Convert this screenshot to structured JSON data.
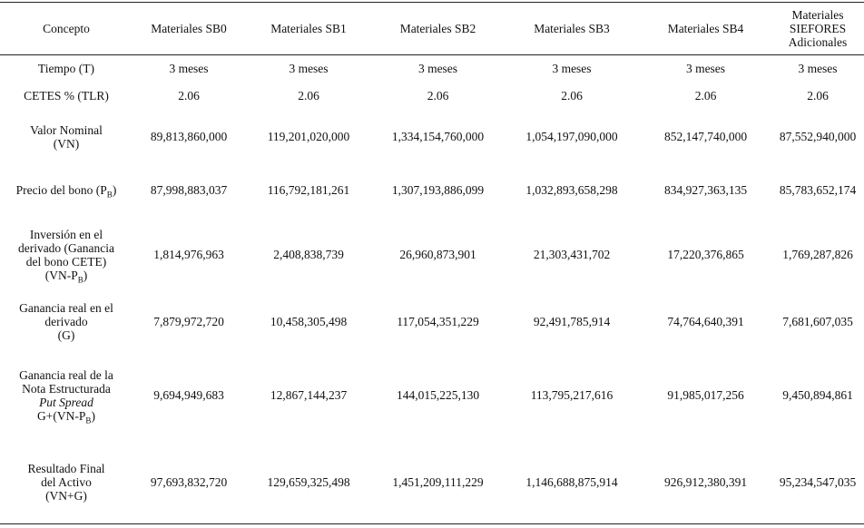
{
  "table": {
    "header": [
      "Concepto",
      "Materiales SB0",
      "Materiales SB1",
      "Materiales SB2",
      "Materiales SB3",
      "Materiales SB4",
      [
        "Materiales",
        "SIEFORES",
        "Adicionales"
      ]
    ],
    "rows": [
      {
        "label": [
          "Tiempo (T)"
        ],
        "values": [
          "3 meses",
          "3 meses",
          "3 meses",
          "3 meses",
          "3 meses",
          "3 meses"
        ]
      },
      {
        "label": [
          "CETES % (TLR)"
        ],
        "values": [
          "2.06",
          "2.06",
          "2.06",
          "2.06",
          "2.06",
          "2.06"
        ]
      },
      {
        "label": [
          "Valor Nominal",
          "(VN)"
        ],
        "values": [
          "89,813,860,000",
          "119,201,020,000",
          "1,334,154,760,000",
          "1,054,197,090,000",
          "852,147,740,000",
          "87,552,940,000"
        ]
      },
      {
        "label": [
          "Precio del bono (P",
          "B",
          ")"
        ],
        "values": [
          "87,998,883,037",
          "116,792,181,261",
          "1,307,193,886,099",
          "1,032,893,658,298",
          "834,927,363,135",
          "85,783,652,174"
        ]
      },
      {
        "label": [
          "Inversión en el",
          "derivado (Ganancia",
          "del bono CETE)",
          "(VN-P",
          "B",
          ")"
        ],
        "values": [
          "1,814,976,963",
          "2,408,838,739",
          "26,960,873,901",
          "21,303,431,702",
          "17,220,376,865",
          "1,769,287,826"
        ]
      },
      {
        "label": [
          "Ganancia real en el",
          "derivado",
          "(G)"
        ],
        "values": [
          "7,879,972,720",
          "10,458,305,498",
          "117,054,351,229",
          "92,491,785,914",
          "74,764,640,391",
          "7,681,607,035"
        ]
      },
      {
        "label": [
          "Ganancia real de la",
          "Nota Estructurada",
          "Put Spread",
          "G+(VN-P",
          "B",
          ")"
        ],
        "values": [
          "9,694,949,683",
          "12,867,144,237",
          "144,015,225,130",
          "113,795,217,616",
          "91,985,017,256",
          "9,450,894,861"
        ]
      },
      {
        "label": [
          "Resultado Final",
          "del Activo",
          "(VN+G)"
        ],
        "values": [
          "97,693,832,720",
          "129,659,325,498",
          "1,451,209,111,229",
          "1,146,688,875,914",
          "926,912,380,391",
          "95,234,547,035"
        ]
      }
    ]
  }
}
